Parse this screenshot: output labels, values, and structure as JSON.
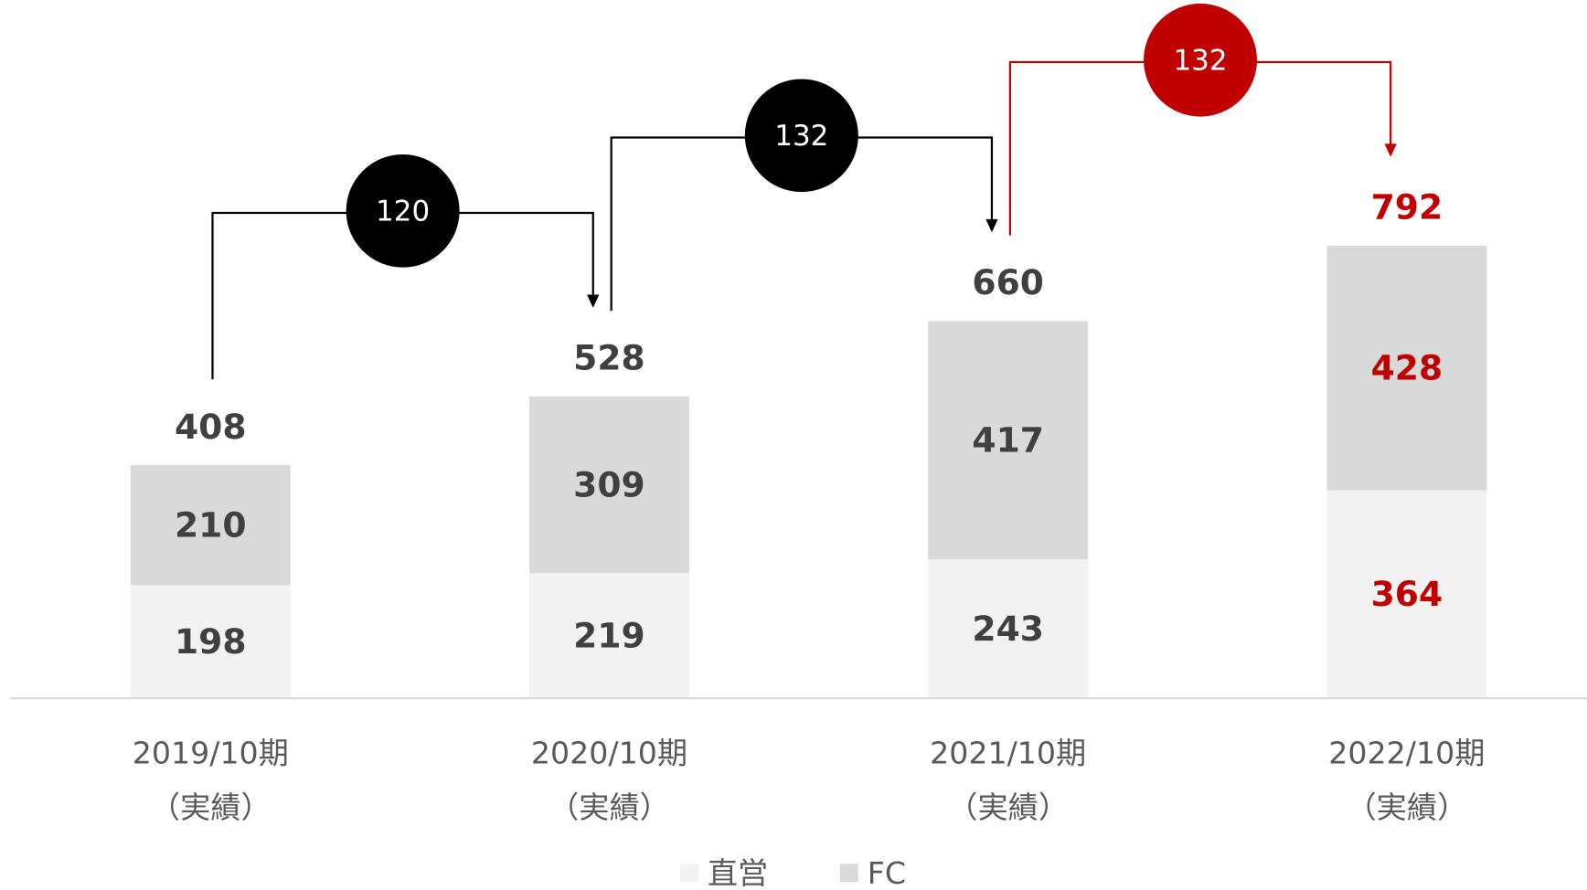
{
  "chart_data": {
    "type": "stacked_bar",
    "categories": [
      [
        "2019/10期",
        "（実績）"
      ],
      [
        "2020/10期",
        "（実績）"
      ],
      [
        "2021/10期",
        "（実績）"
      ],
      [
        "2022/10期",
        "（実績）"
      ]
    ],
    "series": [
      {
        "name": "直営",
        "color": "#f2f2f2",
        "values": [
          198,
          219,
          243,
          364
        ]
      },
      {
        "name": "FC",
        "color": "#d9d9d9",
        "values": [
          210,
          309,
          417,
          428
        ]
      }
    ],
    "totals": [
      408,
      528,
      660,
      792
    ],
    "label_colors": [
      "#404040",
      "#404040",
      "#404040",
      "#c00000"
    ],
    "increments": [
      {
        "value": 120,
        "color": "#000000"
      },
      {
        "value": 132,
        "color": "#000000"
      },
      {
        "value": 132,
        "color": "#c00000"
      }
    ],
    "ylim": [
      0,
      800
    ]
  }
}
